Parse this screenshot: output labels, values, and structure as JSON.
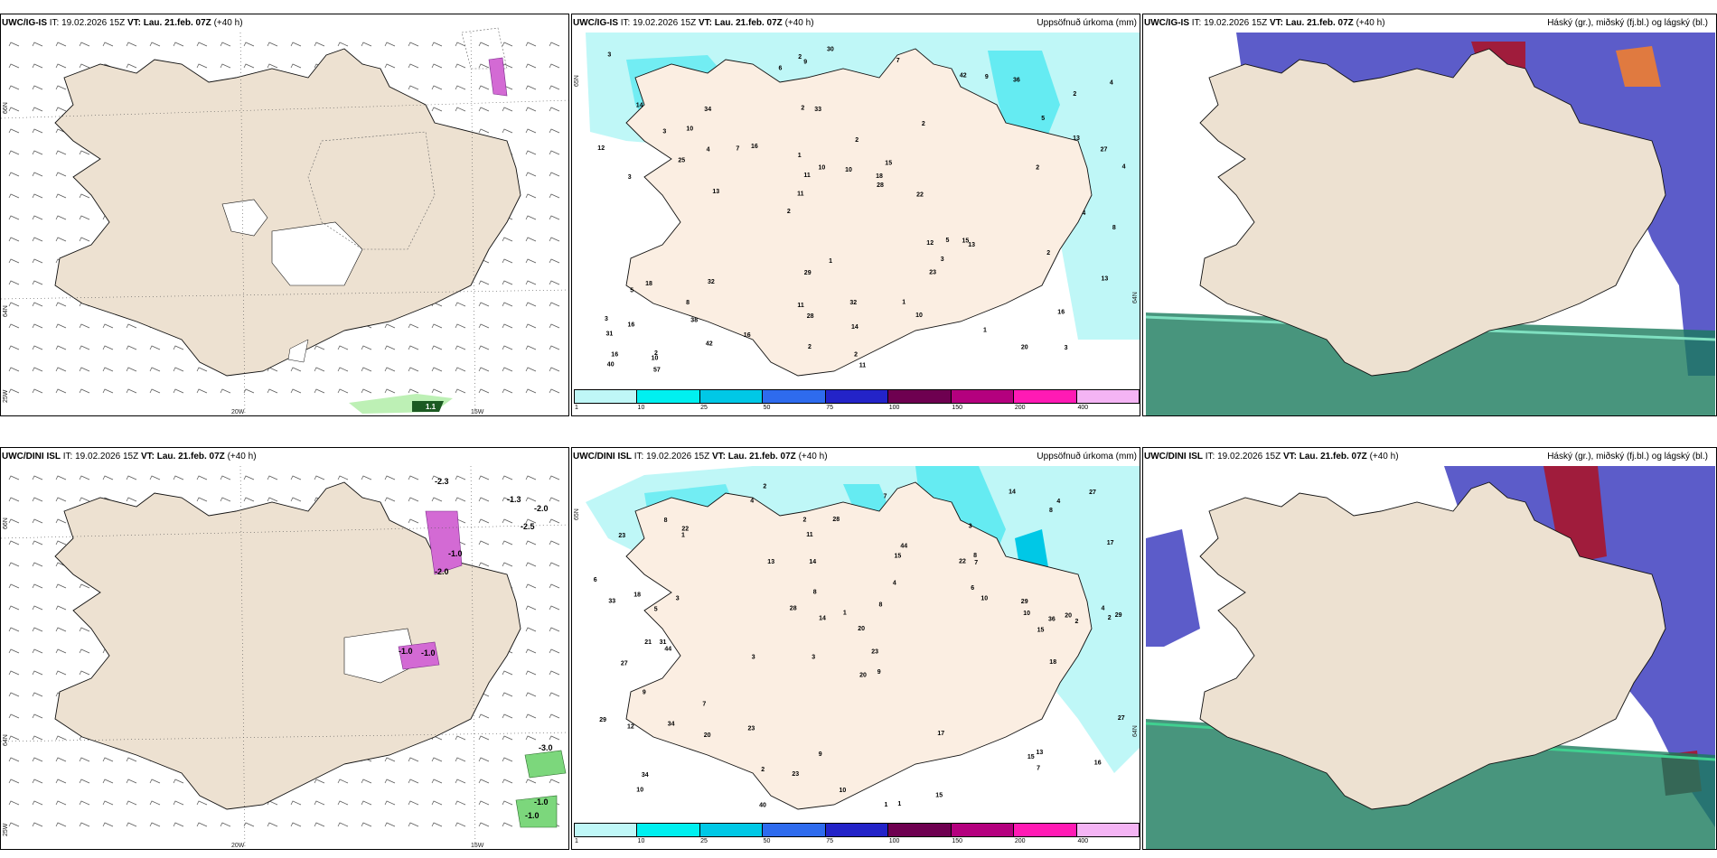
{
  "panels": [
    {
      "id": "igis-wind",
      "model": "UWC/IG-IS",
      "it_label": "IT:",
      "it": "19.02.2026 15Z",
      "vt_label": "VT:",
      "vt": "Lau. 21.feb. 07Z",
      "lead": "(+40 h)",
      "right_title": "",
      "type": "wind",
      "lat_labels": [
        "66N",
        "64N",
        "25W"
      ],
      "lon_labels": [
        "20W",
        "15W"
      ],
      "values": [
        "1.1"
      ]
    },
    {
      "id": "igis-precip",
      "model": "UWC/IG-IS",
      "it_label": "IT:",
      "it": "19.02.2026 15Z",
      "vt_label": "VT:",
      "vt": "Lau. 21.feb. 07Z",
      "lead": "(+40 h)",
      "right_title": "Uppsöfnuð úrkoma (mm)",
      "type": "precip",
      "lat_labels": [
        "65N",
        "64N"
      ],
      "values": [
        "3",
        "3",
        "2",
        "2",
        "2",
        "2",
        "2",
        "2",
        "18",
        "16",
        "31",
        "38",
        "33",
        "15",
        "13",
        "14",
        "9",
        "4",
        "12",
        "13",
        "11",
        "11",
        "11",
        "34",
        "42",
        "32",
        "20",
        "16",
        "15",
        "11",
        "7",
        "25",
        "23",
        "42",
        "27",
        "18",
        "16",
        "28",
        "28",
        "5",
        "5",
        "4",
        "3",
        "10",
        "8",
        "57",
        "40",
        "32",
        "36",
        "30",
        "13",
        "12",
        "10",
        "9",
        "10",
        "7",
        "6",
        "10",
        "13",
        "29",
        "16",
        "5",
        "4",
        "3",
        "3",
        "3",
        "8",
        "1",
        "14",
        "10",
        "16",
        "22",
        "2",
        "2",
        "2",
        "1",
        "1",
        "2",
        "1",
        "2",
        "4"
      ]
    },
    {
      "id": "igis-cloud",
      "model": "UWC/IG-IS",
      "it_label": "IT:",
      "it": "19.02.2026 15Z",
      "vt_label": "VT:",
      "vt": "Lau. 21.feb. 07Z",
      "lead": "(+40 h)",
      "right_title": "Háský (gr.), miðský (fj.bl.) og lágský (bl.)",
      "type": "cloud"
    },
    {
      "id": "dini-wind",
      "model": "UWC/DINI ISL",
      "it_label": "IT:",
      "it": "19.02.2026 15Z",
      "vt_label": "VT:",
      "vt": "Lau. 21.feb. 07Z",
      "lead": "(+40 h)",
      "right_title": "",
      "type": "wind",
      "lat_labels": [
        "66N",
        "64N",
        "25W"
      ],
      "lon_labels": [
        "20W",
        "15W"
      ],
      "values": [
        "-2.3",
        "-1.3",
        "-2.0",
        "-2.5",
        "-1.0",
        "-3.0",
        "-1.0",
        "-1.0",
        "-1.0",
        "-1.0",
        "-2.0"
      ]
    },
    {
      "id": "dini-precip",
      "model": "UWC/DINI ISL",
      "it_label": "IT:",
      "it": "19.02.2026 15Z",
      "vt_label": "VT:",
      "vt": "Lau. 21.feb. 07Z",
      "lead": "(+40 h)",
      "right_title": "Uppsöfnuð úrkoma (mm)",
      "type": "precip",
      "lat_labels": [
        "65N",
        "64N"
      ],
      "values": [
        "2",
        "3",
        "2",
        "3",
        "9",
        "31",
        "23",
        "22",
        "27",
        "15",
        "20",
        "10",
        "4",
        "3",
        "1",
        "1",
        "9",
        "14",
        "10",
        "7",
        "5",
        "21",
        "29",
        "20",
        "29",
        "18",
        "14",
        "10",
        "13",
        "12",
        "15",
        "44",
        "34",
        "28",
        "17",
        "27",
        "29",
        "23",
        "27",
        "28",
        "34",
        "40",
        "15",
        "8",
        "10",
        "7",
        "7",
        "8",
        "6",
        "23",
        "11",
        "15",
        "8",
        "8",
        "7",
        "20",
        "8",
        "1",
        "4",
        "14",
        "16",
        "18",
        "22",
        "23",
        "20",
        "33",
        "36",
        "44",
        "13",
        "17",
        "9",
        "2",
        "4",
        "6",
        "4",
        "3",
        "2",
        "1",
        "2"
      ]
    },
    {
      "id": "dini-cloud",
      "model": "UWC/DINI ISL",
      "it_label": "IT:",
      "it": "19.02.2026 15Z",
      "vt_label": "VT:",
      "vt": "Lau. 21.feb. 07Z",
      "lead": "(+40 h)",
      "right_title": "Háský (gr.), miðský (fj.bl.) og lágský (bl.)",
      "type": "cloud"
    }
  ],
  "legend": {
    "colors": [
      "#bff7f7",
      "#00f0f0",
      "#00c8e6",
      "#2e6bee",
      "#2323c8",
      "#6e0050",
      "#b4007e",
      "#ff1ab4",
      "#f4b4f4"
    ],
    "ticks": [
      "1",
      "10",
      "25",
      "50",
      "75",
      "100",
      "150",
      "200",
      "400"
    ]
  },
  "colors": {
    "land": "#ede1d1",
    "precip_light": "#bff7f7",
    "precip_mid": "#3fe6f0",
    "low_cloud": "#3f3fbf",
    "high_cloud": "#1a7a5c",
    "mid_cloud": "#a01c3c"
  }
}
